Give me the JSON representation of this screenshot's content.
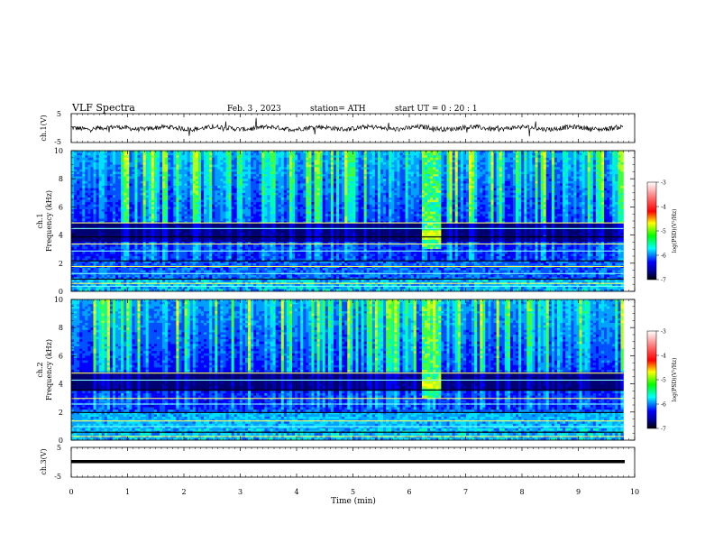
{
  "header": {
    "title": "VLF  Spectra",
    "date": "Feb. 3  , 2023",
    "station": "station= ATH",
    "start": "start  UT  =    0  : 20 : 1"
  },
  "colorscale": {
    "label": "log(PSD)(V²/Hz)",
    "ticks": [
      "-3",
      "-4",
      "-5",
      "-6",
      "-7"
    ],
    "colors": [
      "#ffffff",
      "#ff0000",
      "#ffff00",
      "#00ff00",
      "#00ffff",
      "#0000ff",
      "#000080",
      "#000000"
    ]
  },
  "chart_data": [
    {
      "type": "line",
      "name": "ch1-waveform",
      "ylabel": "ch.1(V)",
      "ylim": [
        -5,
        5
      ],
      "yticks": [
        "5",
        "-5"
      ],
      "xlim": [
        0,
        10
      ],
      "level": 0,
      "note_values": "noisy signal around 0 V with occasional spikes"
    },
    {
      "type": "heatmap",
      "name": "ch1-spectrogram",
      "ylabel": "ch.1\nFrequency  (kHz)",
      "ylabel_lines": [
        "ch.1",
        "Frequency  (kHz)"
      ],
      "ylim": [
        0,
        10
      ],
      "yticks": [
        "0",
        "2",
        "4",
        "6",
        "8",
        "10"
      ],
      "xlim": [
        0,
        9.8
      ],
      "event_time_min": [
        6.2,
        6.55
      ],
      "event_freq_khz": [
        3.7,
        4.3
      ]
    },
    {
      "type": "heatmap",
      "name": "ch2-spectrogram",
      "ylabel_lines": [
        "ch.2",
        "Frequency  (kHz)"
      ],
      "ylim": [
        0,
        10
      ],
      "yticks": [
        "0",
        "2",
        "4",
        "6",
        "8",
        "10"
      ],
      "xlim": [
        0,
        9.8
      ],
      "event_time_min": [
        6.2,
        6.55
      ],
      "event_freq_khz": [
        3.7,
        4.3
      ]
    },
    {
      "type": "line",
      "name": "ch3-waveform",
      "ylabel": "ch.3(V)",
      "ylim": [
        -5,
        5
      ],
      "yticks": [
        "5",
        "-5"
      ],
      "xlim": [
        0,
        10
      ],
      "level": 0
    }
  ],
  "xaxis": {
    "label": "Time  (min)",
    "ticks": [
      "0",
      "1",
      "2",
      "3",
      "4",
      "5",
      "6",
      "7",
      "8",
      "9",
      "10"
    ],
    "range": [
      0,
      10
    ]
  }
}
